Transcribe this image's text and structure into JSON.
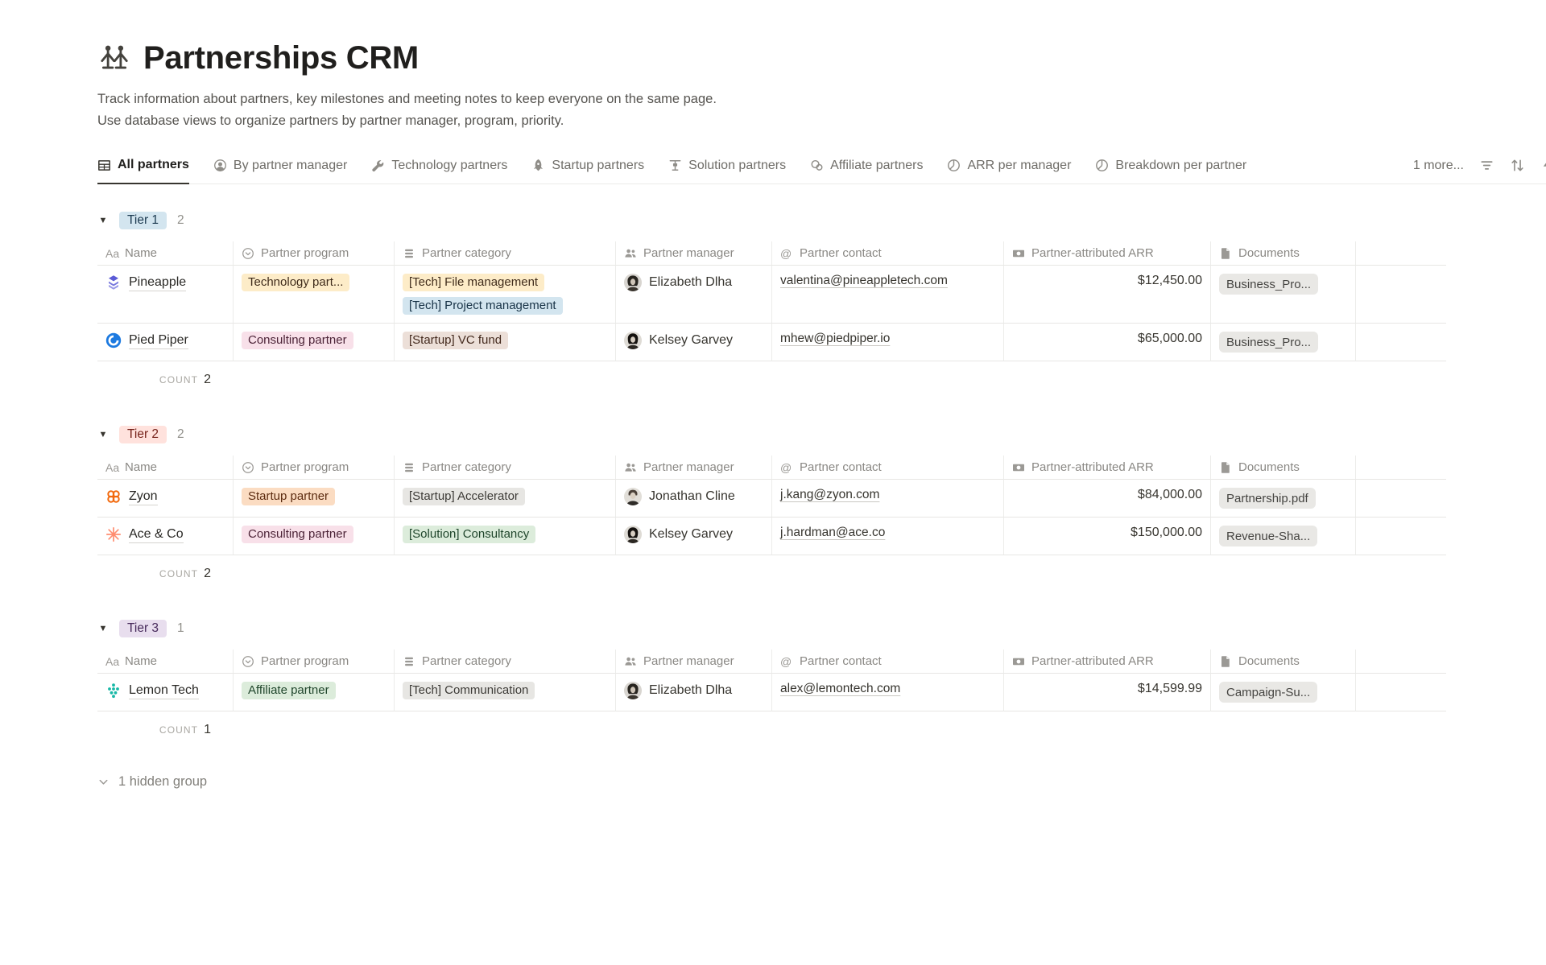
{
  "header": {
    "icon": "partners-icon",
    "title": "Partnerships CRM",
    "description_line1": "Track information about partners, key milestones and meeting notes to keep everyone on the same page.",
    "description_line2": "Use database views to organize partners by partner manager, program, priority."
  },
  "tabs": [
    {
      "label": "All partners",
      "icon": "table-icon",
      "active": true
    },
    {
      "label": "By partner manager",
      "icon": "person-icon",
      "active": false
    },
    {
      "label": "Technology partners",
      "icon": "wrench-icon",
      "active": false
    },
    {
      "label": "Startup partners",
      "icon": "rocket-icon",
      "active": false
    },
    {
      "label": "Solution partners",
      "icon": "board-icon",
      "active": false
    },
    {
      "label": "Affiliate partners",
      "icon": "affiliate-icon",
      "active": false
    },
    {
      "label": "ARR per manager",
      "icon": "pie-icon",
      "active": false
    },
    {
      "label": "Breakdown per partner",
      "icon": "pie-icon",
      "active": false
    }
  ],
  "tabs_overflow_label": "1 more...",
  "toolbar": {
    "filter_icon": "filter-icon",
    "sort_icon": "sort-icon",
    "edge_icon": "zap-icon"
  },
  "columns": [
    {
      "icon": "type-icon",
      "label": "Name"
    },
    {
      "icon": "select-icon",
      "label": "Partner program"
    },
    {
      "icon": "multiselect-icon",
      "label": "Partner category"
    },
    {
      "icon": "people-icon",
      "label": "Partner manager"
    },
    {
      "icon": "email-icon",
      "label": "Partner contact"
    },
    {
      "icon": "money-icon",
      "label": "Partner-attributed ARR"
    },
    {
      "icon": "file-icon",
      "label": "Documents"
    }
  ],
  "groups": [
    {
      "name": "Tier 1",
      "chip_bg": "#d3e5ef",
      "chip_color": "#1c3a50",
      "count": "2",
      "count_label": "COUNT",
      "count_value": "2",
      "rows": [
        {
          "logo": "pineapple-logo",
          "name": "Pineapple",
          "program": {
            "label": "Technology part...",
            "bg": "#fdecc8",
            "color": "#402c1b"
          },
          "categories": [
            {
              "label": "[Tech] File management",
              "bg": "#fdecc8",
              "color": "#402c1b"
            },
            {
              "label": "[Tech] Project management",
              "bg": "#d3e5ef",
              "color": "#183347"
            }
          ],
          "manager": {
            "avatar": "avatar-elizabeth",
            "name": "Elizabeth Dlha"
          },
          "contact": "valentina@pineappletech.com",
          "arr": "$12,450.00",
          "document": "Business_Pro..."
        },
        {
          "logo": "piedpiper-logo",
          "name": "Pied Piper",
          "program": {
            "label": "Consulting partner",
            "bg": "#f8e0e9",
            "color": "#4c2337"
          },
          "categories": [
            {
              "label": "[Startup] VC fund",
              "bg": "#ecdfd8",
              "color": "#442a1e"
            }
          ],
          "manager": {
            "avatar": "avatar-kelsey",
            "name": "Kelsey Garvey"
          },
          "contact": "mhew@piedpiper.io",
          "arr": "$65,000.00",
          "document": "Business_Pro..."
        }
      ]
    },
    {
      "name": "Tier 2",
      "chip_bg": "#ffe2dd",
      "chip_color": "#76221a",
      "count": "2",
      "count_label": "COUNT",
      "count_value": "2",
      "rows": [
        {
          "logo": "zyon-logo",
          "name": "Zyon",
          "program": {
            "label": "Startup partner",
            "bg": "#fbdcc2",
            "color": "#5c2b10"
          },
          "categories": [
            {
              "label": "[Startup] Accelerator",
              "bg": "#e7e6e3",
              "color": "#3d3b37"
            }
          ],
          "manager": {
            "avatar": "avatar-jonathan",
            "name": "Jonathan Cline"
          },
          "contact": "j.kang@zyon.com",
          "arr": "$84,000.00",
          "document": "Partnership.pdf"
        },
        {
          "logo": "ace-logo",
          "name": "Ace & Co",
          "program": {
            "label": "Consulting partner",
            "bg": "#f8e0e9",
            "color": "#4c2337"
          },
          "categories": [
            {
              "label": "[Solution] Consultancy",
              "bg": "#dcecdb",
              "color": "#20462c"
            }
          ],
          "manager": {
            "avatar": "avatar-kelsey",
            "name": "Kelsey Garvey"
          },
          "contact": "j.hardman@ace.co",
          "arr": "$150,000.00",
          "document": "Revenue-Sha..."
        }
      ]
    },
    {
      "name": "Tier 3",
      "chip_bg": "#e8deee",
      "chip_color": "#46295a",
      "count": "1",
      "count_label": "COUNT",
      "count_value": "1",
      "rows": [
        {
          "logo": "lemontech-logo",
          "name": "Lemon Tech",
          "program": {
            "label": "Affiliate partner",
            "bg": "#dcecdb",
            "color": "#20462c"
          },
          "categories": [
            {
              "label": "[Tech] Communication",
              "bg": "#e7e6e3",
              "color": "#3d3b37"
            }
          ],
          "manager": {
            "avatar": "avatar-elizabeth",
            "name": "Elizabeth Dlha"
          },
          "contact": "alex@lemontech.com",
          "arr": "$14,599.99",
          "document": "Campaign-Su..."
        }
      ]
    }
  ],
  "hidden_group_label": "1 hidden group",
  "group_toggle_glyph": "▼"
}
